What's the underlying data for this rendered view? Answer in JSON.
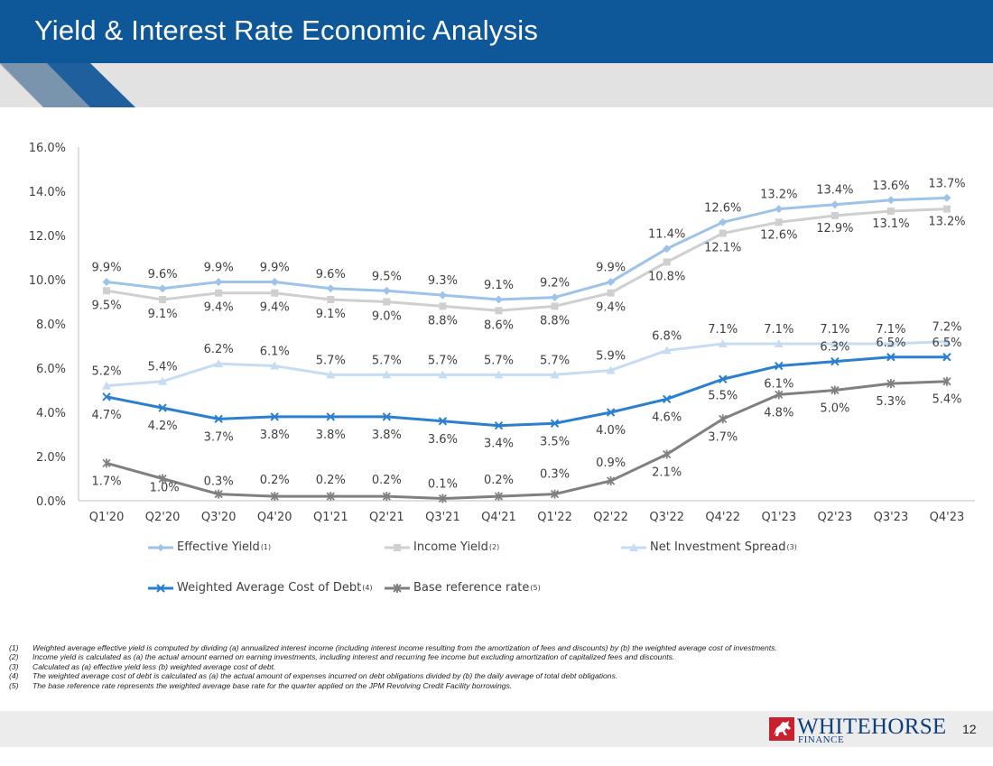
{
  "header": {
    "title": "Yield & Interest Rate Economic Analysis"
  },
  "colors": {
    "header_bg": "#0e5798",
    "effective_yield": "#9dc3ea",
    "income_yield": "#cfcfcf",
    "net_spread": "#c6dcf2",
    "cost_of_debt": "#2a7fd0",
    "base_rate": "#808080"
  },
  "chart_data": {
    "type": "line",
    "categories": [
      "Q1'20",
      "Q2'20",
      "Q3'20",
      "Q4'20",
      "Q1'21",
      "Q2'21",
      "Q3'21",
      "Q4'21",
      "Q1'22",
      "Q2'22",
      "Q3'22",
      "Q4'22",
      "Q1'23",
      "Q2'23",
      "Q3'23",
      "Q4'23"
    ],
    "ylim": [
      0,
      16
    ],
    "yticks": [
      "0.0%",
      "2.0%",
      "4.0%",
      "6.0%",
      "8.0%",
      "10.0%",
      "12.0%",
      "14.0%",
      "16.0%"
    ],
    "series": [
      {
        "key": "effective",
        "name": "Effective Yield",
        "sup": "(1)",
        "marker": "diamond",
        "color": "#9dc3ea",
        "values": [
          9.9,
          9.6,
          9.9,
          9.9,
          9.6,
          9.5,
          9.3,
          9.1,
          9.2,
          9.9,
          11.4,
          12.6,
          13.2,
          13.4,
          13.6,
          13.7
        ],
        "labels": [
          "9.9%",
          "9.6%",
          "9.9%",
          "9.9%",
          "9.6%",
          "9.5%",
          "9.3%",
          "9.1%",
          "9.2%",
          "9.9%",
          "11.4%",
          "12.6%",
          "13.2%",
          "13.4%",
          "13.6%",
          "13.7%"
        ]
      },
      {
        "key": "income",
        "name": "Income Yield",
        "sup": "(2)",
        "marker": "square",
        "color": "#cfcfcf",
        "values": [
          9.5,
          9.1,
          9.4,
          9.4,
          9.1,
          9.0,
          8.8,
          8.6,
          8.8,
          9.4,
          10.8,
          12.1,
          12.6,
          12.9,
          13.1,
          13.2
        ],
        "labels": [
          "9.5%",
          "9.1%",
          "9.4%",
          "9.4%",
          "9.1%",
          "9.0%",
          "8.8%",
          "8.6%",
          "8.8%",
          "9.4%",
          "10.8%",
          "12.1%",
          "12.6%",
          "12.9%",
          "13.1%",
          "13.2%"
        ]
      },
      {
        "key": "spread",
        "name": "Net Investment Spread",
        "sup": "(3)",
        "marker": "triangle",
        "color": "#c6dcf2",
        "values": [
          5.2,
          5.4,
          6.2,
          6.1,
          5.7,
          5.7,
          5.7,
          5.7,
          5.7,
          5.9,
          6.8,
          7.1,
          7.1,
          7.1,
          7.1,
          7.2
        ],
        "labels": [
          "5.2%",
          "5.4%",
          "6.2%",
          "6.1%",
          "5.7%",
          "5.7%",
          "5.7%",
          "5.7%",
          "5.7%",
          "5.9%",
          "6.8%",
          "7.1%",
          "7.1%",
          "7.1%",
          "7.1%",
          "7.2%"
        ]
      },
      {
        "key": "debt",
        "name": "Weighted Average Cost of Debt",
        "sup": "(4)",
        "marker": "x",
        "color": "#2a7fd0",
        "values": [
          4.7,
          4.2,
          3.7,
          3.8,
          3.8,
          3.8,
          3.6,
          3.4,
          3.5,
          4.0,
          4.6,
          5.5,
          6.1,
          6.3,
          6.5,
          6.5
        ],
        "labels": [
          "4.7%",
          "4.2%",
          "3.7%",
          "3.8%",
          "3.8%",
          "3.8%",
          "3.6%",
          "3.4%",
          "3.5%",
          "4.0%",
          "4.6%",
          "5.5%",
          "6.1%",
          "6.3%",
          "6.5%",
          "6.5%"
        ]
      },
      {
        "key": "base",
        "name": "Base reference rate",
        "sup": "(5)",
        "marker": "star",
        "color": "#808080",
        "values": [
          1.7,
          1.0,
          0.3,
          0.2,
          0.2,
          0.2,
          0.1,
          0.2,
          0.3,
          0.9,
          2.1,
          3.7,
          4.8,
          5.0,
          5.3,
          5.4
        ],
        "labels": [
          "1.7%",
          "1.0%",
          "0.3%",
          "0.2%",
          "0.2%",
          "0.2%",
          "0.1%",
          "0.2%",
          "0.3%",
          "0.9%",
          "2.1%",
          "3.7%",
          "4.8%",
          "5.0%",
          "5.3%",
          "5.4%"
        ]
      }
    ]
  },
  "footnotes": [
    {
      "num": "(1)",
      "text": "Weighted average effective yield is computed by dividing (a) annualized interest income (including interest income resulting from the amortization of fees and discounts) by (b) the weighted average cost of investments."
    },
    {
      "num": "(2)",
      "text": "Income yield is calculated as (a) the actual amount earned on earning investments, including interest and recurring fee income but excluding amortization of capitalized fees and discounts."
    },
    {
      "num": "(3)",
      "text": "Calculated as (a) effective yield less (b) weighted average cost of debt."
    },
    {
      "num": "(4)",
      "text": "The weighted average cost of debt is calculated as (a) the actual amount of expenses incurred on debt obligations divided by (b) the daily average of total debt obligations."
    },
    {
      "num": "(5)",
      "text": "The base reference rate represents the weighted average base rate for the quarter applied on the JPM Revolving Credit Facility borrowings."
    }
  ],
  "footer": {
    "logo_name": "WHITEHORSE",
    "logo_sub": "FINANCE",
    "page_number": "12"
  }
}
